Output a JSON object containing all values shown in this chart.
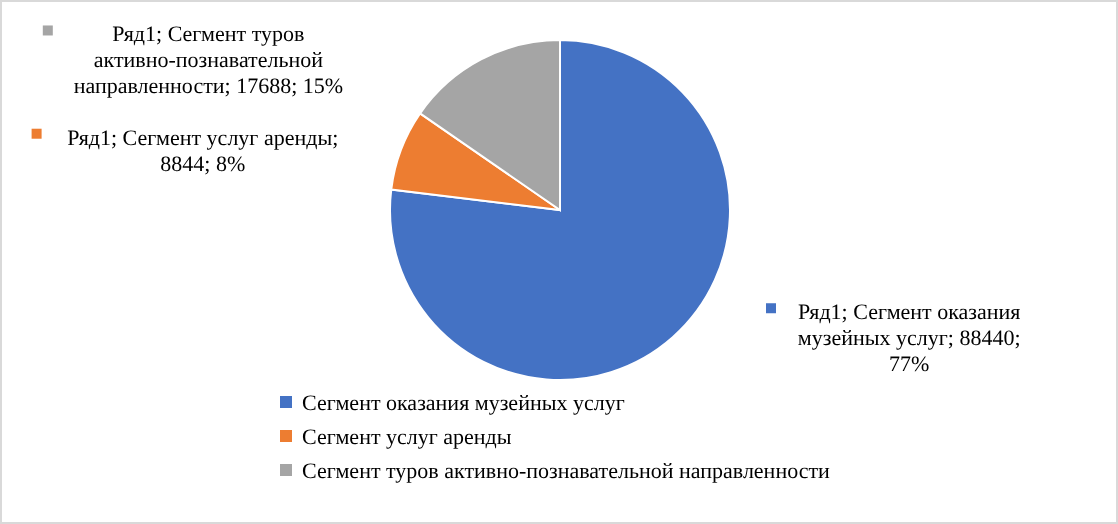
{
  "chart_data": {
    "type": "pie",
    "categories": [
      "Сегмент оказания музейных услуг",
      "Сегмент услуг аренды",
      "Сегмент туров активно-познавательной направленности"
    ],
    "values": [
      88440,
      8844,
      17688
    ],
    "colors": [
      "#4472c4",
      "#ed7d31",
      "#a5a5a5"
    ],
    "value_labels": [
      "Ряд1; Сегмент оказания музейных услуг; 88440; 77%",
      "Ряд1; Сегмент услуг аренды; 8844; 8%",
      "Ряд1; Сегмент туров активно-познавательной направленности; 17688; 15%"
    ],
    "legend": "bottom"
  }
}
